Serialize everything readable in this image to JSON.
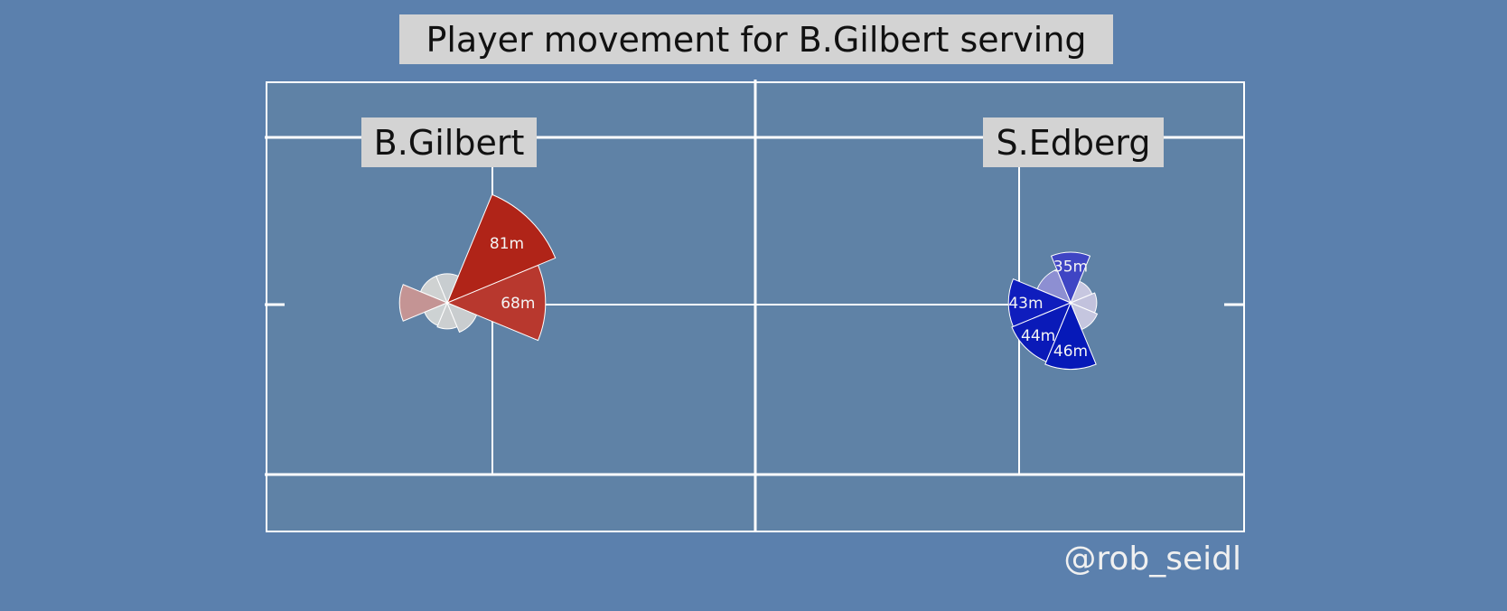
{
  "title": "Player movement for B.Gilbert serving",
  "credit": "@rob_seidl",
  "colors": {
    "background": "#5b80ad",
    "court": "#5f82a6",
    "lines": "#ffffff",
    "label_box": "#d3d3d3"
  },
  "chart_data": {
    "type": "polar-bar",
    "title": "Player movement for B.Gilbert serving",
    "unit": "m",
    "players": [
      {
        "name": "B.Gilbert",
        "sectors": [
          {
            "direction_deg": 0,
            "value": 68,
            "label": "68m",
            "color": "#b8382e"
          },
          {
            "direction_deg": 45,
            "value": 81,
            "label": "81m",
            "color": "#b02418"
          },
          {
            "direction_deg": 90,
            "value": 20,
            "label": "",
            "color": "#c8cdd0"
          },
          {
            "direction_deg": 135,
            "value": 20,
            "label": "",
            "color": "#cfd2d2"
          },
          {
            "direction_deg": 180,
            "value": 33,
            "label": "",
            "color": "#c49494"
          },
          {
            "direction_deg": 225,
            "value": 17,
            "label": "",
            "color": "#cdd2d3"
          },
          {
            "direction_deg": 270,
            "value": 18,
            "label": "",
            "color": "#cccfd0"
          },
          {
            "direction_deg": 315,
            "value": 22,
            "label": "",
            "color": "#c9cdcf"
          }
        ]
      },
      {
        "name": "S.Edberg",
        "sectors": [
          {
            "direction_deg": 0,
            "value": 18,
            "label": "",
            "color": "#c2c2dd"
          },
          {
            "direction_deg": 45,
            "value": 16,
            "label": "",
            "color": "#c7c7e0"
          },
          {
            "direction_deg": 90,
            "value": 35,
            "label": "35m",
            "color": "#3f45c4"
          },
          {
            "direction_deg": 135,
            "value": 25,
            "label": "",
            "color": "#8d8fd2"
          },
          {
            "direction_deg": 180,
            "value": 43,
            "label": "43m",
            "color": "#0f1dbd"
          },
          {
            "direction_deg": 225,
            "value": 44,
            "label": "44m",
            "color": "#0a1ab8"
          },
          {
            "direction_deg": 270,
            "value": 46,
            "label": "46m",
            "color": "#0619b8"
          },
          {
            "direction_deg": 315,
            "value": 20,
            "label": "",
            "color": "#c5c6df"
          }
        ]
      }
    ]
  }
}
